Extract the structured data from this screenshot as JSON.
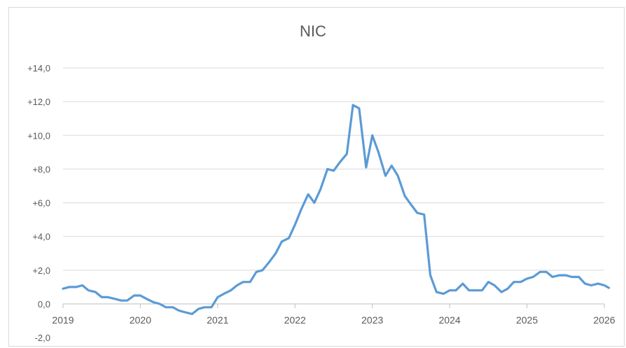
{
  "chart_data": {
    "type": "line",
    "title": "NIC",
    "xlabel": "",
    "ylabel": "",
    "ylim": [
      -2,
      14
    ],
    "xlim": [
      2019,
      2026
    ],
    "y_ticks": [
      -2,
      0,
      2,
      4,
      6,
      8,
      10,
      12,
      14
    ],
    "y_tick_labels": [
      "-2,0",
      "0,0",
      "+2,0",
      "+4,0",
      "+6,0",
      "+8,0",
      "+10,0",
      "+12,0",
      "+14,0"
    ],
    "x_tick_labels": [
      "2019",
      "2020",
      "2021",
      "2022",
      "2023",
      "2024",
      "2025",
      "2026"
    ],
    "grid": "horizontal",
    "line_color": "#5b9bd5",
    "series": [
      {
        "x": [
          2019.0,
          2019.08,
          2019.17,
          2019.25,
          2019.33,
          2019.42,
          2019.5,
          2019.58,
          2019.67,
          2019.75,
          2019.83,
          2019.92,
          2020.0,
          2020.08,
          2020.17,
          2020.25,
          2020.33,
          2020.42,
          2020.5,
          2020.58,
          2020.67,
          2020.75,
          2020.83,
          2020.92,
          2021.0,
          2021.08,
          2021.17,
          2021.25,
          2021.33,
          2021.42,
          2021.5,
          2021.58,
          2021.67,
          2021.75,
          2021.83,
          2021.92,
          2022.0,
          2022.08,
          2022.17,
          2022.25,
          2022.33,
          2022.42,
          2022.5,
          2022.58,
          2022.67,
          2022.75,
          2022.83,
          2022.92,
          2023.0,
          2023.08,
          2023.17,
          2023.25,
          2023.33,
          2023.42,
          2023.5,
          2023.58,
          2023.67,
          2023.75,
          2023.83,
          2023.92,
          2024.0,
          2024.08,
          2024.17,
          2024.25,
          2024.33,
          2024.42,
          2024.5,
          2024.58,
          2024.67,
          2024.75,
          2024.83,
          2024.92,
          2025.0,
          2025.08,
          2025.17,
          2025.25,
          2025.33,
          2025.42,
          2025.5,
          2025.58,
          2025.67,
          2025.75,
          2025.83,
          2025.92,
          2026.0,
          2026.06
        ],
        "y": [
          0.9,
          1.0,
          1.0,
          1.1,
          0.8,
          0.7,
          0.4,
          0.4,
          0.3,
          0.2,
          0.2,
          0.5,
          0.5,
          0.3,
          0.1,
          0.0,
          -0.2,
          -0.2,
          -0.4,
          -0.5,
          -0.6,
          -0.3,
          -0.2,
          -0.2,
          0.4,
          0.6,
          0.8,
          1.1,
          1.3,
          1.3,
          1.9,
          2.0,
          2.5,
          3.0,
          3.7,
          3.9,
          4.7,
          5.6,
          6.5,
          6.0,
          6.8,
          8.0,
          7.9,
          8.4,
          8.9,
          11.8,
          11.6,
          8.1,
          10.0,
          9.0,
          7.6,
          8.2,
          7.6,
          6.4,
          5.9,
          5.4,
          5.3,
          1.7,
          0.7,
          0.6,
          0.8,
          0.8,
          1.2,
          0.8,
          0.8,
          0.8,
          1.3,
          1.1,
          0.7,
          0.9,
          1.3,
          1.3,
          1.5,
          1.6,
          1.9,
          1.9,
          1.6,
          1.7,
          1.7,
          1.6,
          1.6,
          1.2,
          1.1,
          1.2,
          1.1,
          0.95
        ]
      }
    ]
  }
}
